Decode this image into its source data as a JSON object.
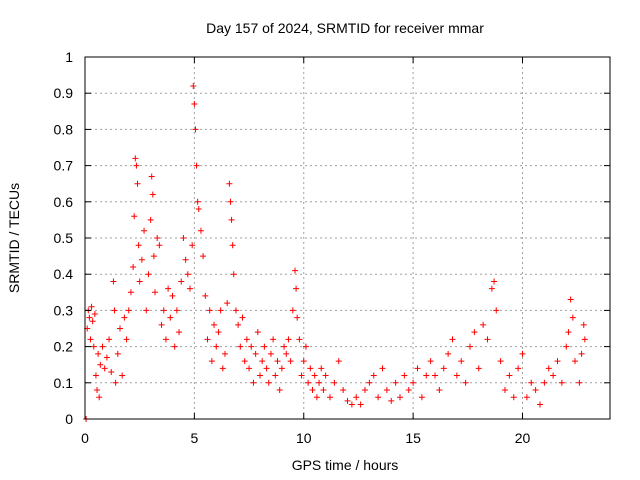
{
  "chart_data": {
    "type": "scatter",
    "title": "Day 157 of 2024, SRMTID for receiver mmar",
    "xlabel": "GPS time / hours",
    "ylabel": "SRMTID / TECUs",
    "xlim": [
      0,
      24
    ],
    "ylim": [
      0,
      1
    ],
    "x_ticks": [
      0,
      5,
      10,
      15,
      20
    ],
    "x_tick_labels": [
      "0",
      "5",
      "10",
      "15",
      "20"
    ],
    "y_ticks": [
      0,
      0.1,
      0.2,
      0.3,
      0.4,
      0.5,
      0.6,
      0.7,
      0.8,
      0.9,
      1
    ],
    "y_tick_labels": [
      "0",
      "0.1",
      "0.2",
      "0.3",
      "0.4",
      "0.5",
      "0.6",
      "0.7",
      "0.8",
      "0.9",
      "1"
    ],
    "grid": true,
    "marker": "+",
    "color": "#ff0000",
    "series": [
      {
        "name": "SRMTID",
        "points": [
          [
            0.05,
            0.0
          ],
          [
            0.1,
            0.25
          ],
          [
            0.15,
            0.3
          ],
          [
            0.2,
            0.28
          ],
          [
            0.25,
            0.22
          ],
          [
            0.3,
            0.31
          ],
          [
            0.35,
            0.27
          ],
          [
            0.4,
            0.2
          ],
          [
            0.45,
            0.29
          ],
          [
            0.5,
            0.12
          ],
          [
            0.55,
            0.08
          ],
          [
            0.6,
            0.18
          ],
          [
            0.65,
            0.06
          ],
          [
            0.7,
            0.15
          ],
          [
            0.8,
            0.2
          ],
          [
            0.9,
            0.14
          ],
          [
            1.0,
            0.17
          ],
          [
            1.1,
            0.22
          ],
          [
            1.2,
            0.13
          ],
          [
            1.3,
            0.38
          ],
          [
            1.35,
            0.3
          ],
          [
            1.4,
            0.1
          ],
          [
            1.5,
            0.18
          ],
          [
            1.6,
            0.25
          ],
          [
            1.7,
            0.12
          ],
          [
            1.8,
            0.28
          ],
          [
            1.9,
            0.22
          ],
          [
            2.0,
            0.3
          ],
          [
            2.1,
            0.35
          ],
          [
            2.2,
            0.42
          ],
          [
            2.25,
            0.56
          ],
          [
            2.3,
            0.72
          ],
          [
            2.35,
            0.7
          ],
          [
            2.4,
            0.65
          ],
          [
            2.45,
            0.48
          ],
          [
            2.5,
            0.38
          ],
          [
            2.6,
            0.44
          ],
          [
            2.7,
            0.52
          ],
          [
            2.8,
            0.3
          ],
          [
            2.9,
            0.4
          ],
          [
            3.0,
            0.55
          ],
          [
            3.05,
            0.67
          ],
          [
            3.1,
            0.62
          ],
          [
            3.15,
            0.45
          ],
          [
            3.2,
            0.35
          ],
          [
            3.3,
            0.5
          ],
          [
            3.4,
            0.48
          ],
          [
            3.5,
            0.26
          ],
          [
            3.6,
            0.3
          ],
          [
            3.7,
            0.22
          ],
          [
            3.8,
            0.36
          ],
          [
            3.9,
            0.28
          ],
          [
            4.0,
            0.34
          ],
          [
            4.1,
            0.2
          ],
          [
            4.2,
            0.3
          ],
          [
            4.3,
            0.24
          ],
          [
            4.4,
            0.38
          ],
          [
            4.5,
            0.5
          ],
          [
            4.6,
            0.44
          ],
          [
            4.7,
            0.4
          ],
          [
            4.8,
            0.36
          ],
          [
            4.9,
            0.48
          ],
          [
            4.95,
            0.92
          ],
          [
            5.0,
            0.87
          ],
          [
            5.05,
            0.8
          ],
          [
            5.1,
            0.7
          ],
          [
            5.15,
            0.6
          ],
          [
            5.2,
            0.58
          ],
          [
            5.3,
            0.52
          ],
          [
            5.4,
            0.45
          ],
          [
            5.5,
            0.34
          ],
          [
            5.6,
            0.22
          ],
          [
            5.7,
            0.3
          ],
          [
            5.8,
            0.16
          ],
          [
            5.9,
            0.26
          ],
          [
            6.0,
            0.2
          ],
          [
            6.1,
            0.24
          ],
          [
            6.2,
            0.3
          ],
          [
            6.3,
            0.14
          ],
          [
            6.4,
            0.18
          ],
          [
            6.5,
            0.32
          ],
          [
            6.6,
            0.65
          ],
          [
            6.65,
            0.6
          ],
          [
            6.7,
            0.55
          ],
          [
            6.75,
            0.48
          ],
          [
            6.8,
            0.4
          ],
          [
            6.9,
            0.3
          ],
          [
            7.0,
            0.26
          ],
          [
            7.1,
            0.2
          ],
          [
            7.2,
            0.28
          ],
          [
            7.3,
            0.16
          ],
          [
            7.4,
            0.22
          ],
          [
            7.5,
            0.14
          ],
          [
            7.6,
            0.2
          ],
          [
            7.7,
            0.1
          ],
          [
            7.8,
            0.18
          ],
          [
            7.9,
            0.24
          ],
          [
            8.0,
            0.12
          ],
          [
            8.1,
            0.16
          ],
          [
            8.2,
            0.2
          ],
          [
            8.3,
            0.14
          ],
          [
            8.4,
            0.1
          ],
          [
            8.5,
            0.18
          ],
          [
            8.6,
            0.22
          ],
          [
            8.7,
            0.12
          ],
          [
            8.8,
            0.16
          ],
          [
            8.9,
            0.08
          ],
          [
            9.0,
            0.14
          ],
          [
            9.1,
            0.2
          ],
          [
            9.2,
            0.18
          ],
          [
            9.3,
            0.22
          ],
          [
            9.4,
            0.16
          ],
          [
            9.5,
            0.3
          ],
          [
            9.6,
            0.41
          ],
          [
            9.65,
            0.36
          ],
          [
            9.7,
            0.28
          ],
          [
            9.8,
            0.22
          ],
          [
            9.9,
            0.12
          ],
          [
            10.0,
            0.16
          ],
          [
            10.1,
            0.2
          ],
          [
            10.2,
            0.1
          ],
          [
            10.3,
            0.14
          ],
          [
            10.4,
            0.08
          ],
          [
            10.5,
            0.12
          ],
          [
            10.6,
            0.06
          ],
          [
            10.7,
            0.1
          ],
          [
            10.8,
            0.14
          ],
          [
            10.9,
            0.08
          ],
          [
            11.0,
            0.12
          ],
          [
            11.2,
            0.06
          ],
          [
            11.4,
            0.1
          ],
          [
            11.6,
            0.16
          ],
          [
            11.8,
            0.08
          ],
          [
            12.0,
            0.05
          ],
          [
            12.2,
            0.04
          ],
          [
            12.4,
            0.06
          ],
          [
            12.6,
            0.04
          ],
          [
            12.8,
            0.08
          ],
          [
            13.0,
            0.1
          ],
          [
            13.2,
            0.12
          ],
          [
            13.4,
            0.06
          ],
          [
            13.6,
            0.14
          ],
          [
            13.8,
            0.08
          ],
          [
            14.0,
            0.05
          ],
          [
            14.2,
            0.1
          ],
          [
            14.4,
            0.06
          ],
          [
            14.6,
            0.12
          ],
          [
            14.8,
            0.08
          ],
          [
            15.0,
            0.1
          ],
          [
            15.2,
            0.14
          ],
          [
            15.4,
            0.06
          ],
          [
            15.6,
            0.12
          ],
          [
            15.8,
            0.16
          ],
          [
            16.0,
            0.12
          ],
          [
            16.2,
            0.08
          ],
          [
            16.4,
            0.14
          ],
          [
            16.6,
            0.18
          ],
          [
            16.8,
            0.22
          ],
          [
            17.0,
            0.12
          ],
          [
            17.2,
            0.16
          ],
          [
            17.4,
            0.1
          ],
          [
            17.6,
            0.2
          ],
          [
            17.8,
            0.24
          ],
          [
            18.0,
            0.14
          ],
          [
            18.2,
            0.26
          ],
          [
            18.4,
            0.22
          ],
          [
            18.6,
            0.36
          ],
          [
            18.7,
            0.38
          ],
          [
            18.8,
            0.3
          ],
          [
            19.0,
            0.16
          ],
          [
            19.2,
            0.08
          ],
          [
            19.4,
            0.12
          ],
          [
            19.6,
            0.06
          ],
          [
            19.8,
            0.14
          ],
          [
            20.0,
            0.18
          ],
          [
            20.2,
            0.06
          ],
          [
            20.4,
            0.1
          ],
          [
            20.6,
            0.08
          ],
          [
            20.8,
            0.04
          ],
          [
            21.0,
            0.1
          ],
          [
            21.2,
            0.14
          ],
          [
            21.4,
            0.12
          ],
          [
            21.6,
            0.16
          ],
          [
            21.8,
            0.1
          ],
          [
            22.0,
            0.2
          ],
          [
            22.1,
            0.24
          ],
          [
            22.2,
            0.33
          ],
          [
            22.3,
            0.28
          ],
          [
            22.4,
            0.16
          ],
          [
            22.6,
            0.1
          ],
          [
            22.7,
            0.18
          ],
          [
            22.8,
            0.26
          ],
          [
            22.85,
            0.22
          ]
        ]
      }
    ]
  }
}
